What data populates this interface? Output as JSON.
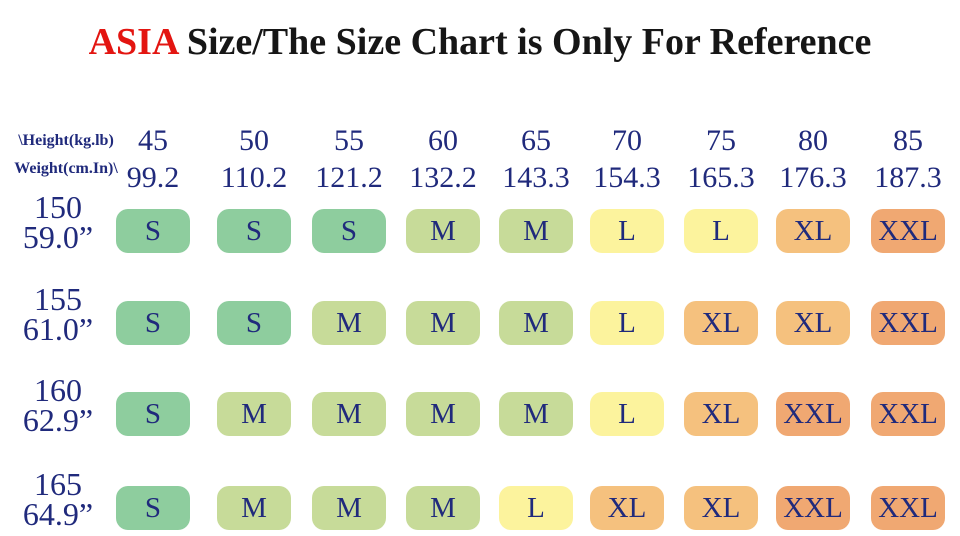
{
  "title": {
    "highlight": "ASIA",
    "rest": " Size/The Size Chart is Only For Reference"
  },
  "corner": {
    "line1": "\\Height(kg.lb)",
    "line2": "Weight(cm.In)\\"
  },
  "columns": [
    {
      "kg": "45",
      "lb": "99.2"
    },
    {
      "kg": "50",
      "lb": "110.2"
    },
    {
      "kg": "55",
      "lb": "121.2"
    },
    {
      "kg": "60",
      "lb": "132.2"
    },
    {
      "kg": "65",
      "lb": "143.3"
    },
    {
      "kg": "70",
      "lb": "154.3"
    },
    {
      "kg": "75",
      "lb": "165.3"
    },
    {
      "kg": "80",
      "lb": "176.3"
    },
    {
      "kg": "85",
      "lb": "187.3"
    }
  ],
  "rows": [
    {
      "cm": "150",
      "inch": "59.0”",
      "sizes": [
        "S",
        "S",
        "S",
        "M",
        "M",
        "L",
        "L",
        "XL",
        "XXL"
      ]
    },
    {
      "cm": "155",
      "inch": "61.0”",
      "sizes": [
        "S",
        "S",
        "M",
        "M",
        "M",
        "L",
        "XL",
        "XL",
        "XXL"
      ]
    },
    {
      "cm": "160",
      "inch": "62.9”",
      "sizes": [
        "S",
        "M",
        "M",
        "M",
        "M",
        "L",
        "XL",
        "XXL",
        "XXL"
      ]
    },
    {
      "cm": "165",
      "inch": "64.9”",
      "sizes": [
        "S",
        "M",
        "M",
        "M",
        "L",
        "XL",
        "XL",
        "XXL",
        "XXL"
      ]
    }
  ],
  "colors": {
    "S": "#8ecd9e",
    "M": "#c7db99",
    "L": "#fcf39d",
    "XL": "#f5c17e",
    "XXL": "#f0a872",
    "text_navy": "#202a7c",
    "title_red": "#e31511"
  },
  "chart_data": {
    "type": "table",
    "title": "ASIA Size/The Size Chart is Only For Reference",
    "corner_labels": [
      "\\Height(kg.lb)",
      "Weight(cm.In)\\"
    ],
    "weight_kg": [
      45,
      50,
      55,
      60,
      65,
      70,
      75,
      80,
      85
    ],
    "weight_lb": [
      99.2,
      110.2,
      121.2,
      132.2,
      143.3,
      154.3,
      165.3,
      176.3,
      187.3
    ],
    "height_cm": [
      150,
      155,
      160,
      165
    ],
    "height_in": [
      59.0,
      61.0,
      62.9,
      64.9
    ],
    "sizes_matrix": [
      [
        "S",
        "S",
        "S",
        "M",
        "M",
        "L",
        "L",
        "XL",
        "XXL"
      ],
      [
        "S",
        "S",
        "M",
        "M",
        "M",
        "L",
        "XL",
        "XL",
        "XXL"
      ],
      [
        "S",
        "M",
        "M",
        "M",
        "M",
        "L",
        "XL",
        "XXL",
        "XXL"
      ],
      [
        "S",
        "M",
        "M",
        "M",
        "L",
        "XL",
        "XL",
        "XXL",
        "XXL"
      ]
    ],
    "cell_colors": {
      "S": "#8ecd9e",
      "M": "#c7db99",
      "L": "#fcf39d",
      "XL": "#f5c17e",
      "XXL": "#f0a872"
    }
  }
}
